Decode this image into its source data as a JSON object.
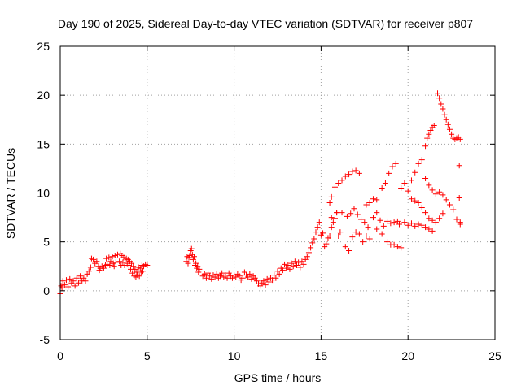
{
  "chart_data": {
    "type": "scatter",
    "title": "Day 190 of 2025, Sidereal Day-to-day VTEC variation (SDTVAR) for receiver p807",
    "xlabel": "GPS time / hours",
    "ylabel": "SDTVAR / TECUs",
    "xlim": [
      0,
      25
    ],
    "ylim": [
      -5,
      25
    ],
    "xticks": [
      0,
      5,
      10,
      15,
      20,
      25
    ],
    "yticks": [
      -5,
      0,
      5,
      10,
      15,
      20,
      25
    ],
    "xtick_labels": [
      "0",
      "5",
      "10",
      "15",
      "20",
      "25"
    ],
    "ytick_labels": [
      "-5",
      "0",
      "5",
      "10",
      "15",
      "20",
      "25"
    ],
    "grid": true,
    "marker": "+",
    "marker_color": "#ff0000",
    "series": [
      {
        "name": "SDTVAR",
        "points": [
          [
            0.0,
            -0.3
          ],
          [
            0.05,
            0.5
          ],
          [
            0.1,
            0.3
          ],
          [
            0.15,
            1.0
          ],
          [
            0.25,
            0.6
          ],
          [
            0.35,
            1.1
          ],
          [
            0.45,
            0.4
          ],
          [
            0.55,
            1.2
          ],
          [
            0.65,
            0.8
          ],
          [
            0.75,
            1.0
          ],
          [
            0.85,
            0.5
          ],
          [
            0.95,
            1.3
          ],
          [
            1.05,
            0.8
          ],
          [
            1.15,
            1.5
          ],
          [
            1.25,
            1.0
          ],
          [
            1.35,
            1.3
          ],
          [
            1.45,
            1.0
          ],
          [
            1.55,
            1.7
          ],
          [
            1.65,
            2.0
          ],
          [
            1.75,
            2.4
          ],
          [
            1.8,
            3.3
          ],
          [
            1.9,
            3.2
          ],
          [
            2.0,
            2.8
          ],
          [
            2.1,
            3.0
          ],
          [
            2.2,
            2.5
          ],
          [
            2.25,
            2.1
          ],
          [
            2.3,
            2.3
          ],
          [
            2.4,
            2.5
          ],
          [
            2.5,
            2.3
          ],
          [
            2.6,
            2.6
          ],
          [
            2.65,
            3.3
          ],
          [
            2.7,
            2.7
          ],
          [
            2.8,
            3.4
          ],
          [
            2.85,
            2.6
          ],
          [
            2.9,
            3.0
          ],
          [
            3.0,
            3.5
          ],
          [
            3.05,
            2.8
          ],
          [
            3.1,
            2.5
          ],
          [
            3.15,
            3.6
          ],
          [
            3.2,
            2.9
          ],
          [
            3.3,
            3.7
          ],
          [
            3.4,
            3.0
          ],
          [
            3.45,
            3.8
          ],
          [
            3.5,
            2.6
          ],
          [
            3.55,
            3.6
          ],
          [
            3.6,
            2.9
          ],
          [
            3.65,
            3.4
          ],
          [
            3.7,
            2.6
          ],
          [
            3.8,
            3.3
          ],
          [
            3.85,
            2.8
          ],
          [
            3.9,
            3.2
          ],
          [
            3.95,
            2.6
          ],
          [
            4.0,
            3.0
          ],
          [
            4.05,
            2.2
          ],
          [
            4.1,
            2.8
          ],
          [
            4.15,
            1.8
          ],
          [
            4.2,
            2.5
          ],
          [
            4.25,
            1.5
          ],
          [
            4.3,
            2.2
          ],
          [
            4.35,
            1.4
          ],
          [
            4.4,
            1.9
          ],
          [
            4.45,
            1.6
          ],
          [
            4.5,
            2.4
          ],
          [
            4.55,
            1.5
          ],
          [
            4.6,
            2.3
          ],
          [
            4.65,
            1.9
          ],
          [
            4.7,
            2.6
          ],
          [
            4.75,
            2.0
          ],
          [
            4.8,
            2.5
          ],
          [
            4.9,
            2.7
          ],
          [
            5.0,
            2.6
          ],
          [
            7.25,
            3.0
          ],
          [
            7.3,
            3.5
          ],
          [
            7.35,
            2.8
          ],
          [
            7.4,
            3.4
          ],
          [
            7.45,
            3.6
          ],
          [
            7.5,
            4.1
          ],
          [
            7.55,
            4.3
          ],
          [
            7.6,
            3.7
          ],
          [
            7.65,
            3.2
          ],
          [
            7.7,
            3.5
          ],
          [
            7.75,
            2.6
          ],
          [
            7.8,
            2.8
          ],
          [
            7.85,
            2.3
          ],
          [
            7.9,
            2.5
          ],
          [
            7.95,
            1.9
          ],
          [
            8.0,
            2.2
          ],
          [
            8.2,
            1.5
          ],
          [
            8.3,
            1.7
          ],
          [
            8.4,
            1.3
          ],
          [
            8.5,
            1.8
          ],
          [
            8.6,
            1.5
          ],
          [
            8.7,
            1.2
          ],
          [
            8.8,
            1.6
          ],
          [
            8.9,
            1.4
          ],
          [
            9.0,
            1.7
          ],
          [
            9.1,
            1.3
          ],
          [
            9.2,
            1.5
          ],
          [
            9.3,
            1.8
          ],
          [
            9.4,
            1.4
          ],
          [
            9.5,
            1.6
          ],
          [
            9.6,
            1.3
          ],
          [
            9.7,
            1.8
          ],
          [
            9.8,
            1.5
          ],
          [
            9.9,
            1.3
          ],
          [
            10.0,
            1.6
          ],
          [
            10.1,
            1.4
          ],
          [
            10.2,
            1.7
          ],
          [
            10.3,
            1.5
          ],
          [
            10.4,
            1.1
          ],
          [
            10.5,
            1.3
          ],
          [
            10.6,
            1.9
          ],
          [
            10.7,
            1.6
          ],
          [
            10.8,
            1.4
          ],
          [
            10.9,
            1.7
          ],
          [
            11.0,
            1.2
          ],
          [
            11.1,
            1.5
          ],
          [
            11.2,
            1.3
          ],
          [
            11.3,
            1.0
          ],
          [
            11.4,
            0.7
          ],
          [
            11.5,
            0.5
          ],
          [
            11.6,
            0.8
          ],
          [
            11.7,
            1.0
          ],
          [
            11.8,
            0.6
          ],
          [
            11.9,
            1.2
          ],
          [
            12.0,
            0.9
          ],
          [
            12.1,
            1.3
          ],
          [
            12.2,
            1.1
          ],
          [
            12.3,
            1.6
          ],
          [
            12.4,
            1.3
          ],
          [
            12.5,
            2.0
          ],
          [
            12.6,
            1.7
          ],
          [
            12.7,
            2.3
          ],
          [
            12.8,
            2.1
          ],
          [
            12.9,
            2.7
          ],
          [
            13.0,
            2.3
          ],
          [
            13.1,
            2.6
          ],
          [
            13.2,
            2.2
          ],
          [
            13.3,
            2.8
          ],
          [
            13.4,
            2.5
          ],
          [
            13.5,
            3.0
          ],
          [
            13.6,
            2.6
          ],
          [
            13.7,
            2.9
          ],
          [
            13.8,
            2.4
          ],
          [
            13.9,
            3.0
          ],
          [
            14.0,
            2.7
          ],
          [
            14.1,
            3.2
          ],
          [
            14.2,
            3.5
          ],
          [
            14.3,
            3.9
          ],
          [
            14.4,
            4.4
          ],
          [
            14.5,
            4.9
          ],
          [
            14.6,
            5.3
          ],
          [
            14.7,
            6.0
          ],
          [
            14.8,
            6.5
          ],
          [
            14.9,
            7.0
          ],
          [
            15.0,
            5.7
          ],
          [
            15.1,
            5.9
          ],
          [
            15.2,
            4.5
          ],
          [
            15.3,
            4.8
          ],
          [
            15.4,
            5.4
          ],
          [
            15.5,
            5.6
          ],
          [
            15.6,
            6.5
          ],
          [
            15.7,
            7.0
          ],
          [
            15.8,
            7.4
          ],
          [
            15.9,
            8.0
          ],
          [
            16.0,
            5.6
          ],
          [
            16.1,
            6.0
          ],
          [
            15.5,
            9.0
          ],
          [
            15.6,
            9.6
          ],
          [
            15.8,
            10.6
          ],
          [
            16.0,
            11.0
          ],
          [
            16.2,
            11.3
          ],
          [
            16.4,
            11.7
          ],
          [
            16.6,
            11.9
          ],
          [
            16.8,
            12.2
          ],
          [
            17.0,
            12.3
          ],
          [
            17.2,
            12.0
          ],
          [
            15.6,
            7.5
          ],
          [
            15.9,
            8.0
          ],
          [
            16.2,
            8.0
          ],
          [
            16.5,
            7.6
          ],
          [
            16.7,
            7.9
          ],
          [
            16.9,
            8.4
          ],
          [
            17.1,
            7.8
          ],
          [
            17.3,
            7.3
          ],
          [
            17.5,
            7.0
          ],
          [
            17.7,
            6.5
          ],
          [
            16.4,
            4.5
          ],
          [
            16.6,
            4.1
          ],
          [
            16.8,
            5.5
          ],
          [
            17.0,
            6.0
          ],
          [
            17.2,
            5.8
          ],
          [
            17.4,
            5.0
          ],
          [
            17.6,
            5.6
          ],
          [
            17.8,
            5.3
          ],
          [
            18.0,
            7.5
          ],
          [
            18.2,
            8.0
          ],
          [
            17.6,
            8.8
          ],
          [
            17.8,
            9.0
          ],
          [
            18.0,
            9.4
          ],
          [
            18.2,
            9.3
          ],
          [
            18.4,
            7.2
          ],
          [
            18.6,
            6.6
          ],
          [
            18.8,
            7.1
          ],
          [
            19.0,
            6.9
          ],
          [
            19.2,
            7.0
          ],
          [
            19.4,
            7.1
          ],
          [
            18.2,
            6.3
          ],
          [
            18.5,
            5.8
          ],
          [
            18.8,
            5.0
          ],
          [
            19.0,
            4.7
          ],
          [
            19.2,
            4.7
          ],
          [
            19.4,
            4.5
          ],
          [
            19.6,
            4.4
          ],
          [
            18.5,
            10.5
          ],
          [
            18.7,
            11.0
          ],
          [
            18.9,
            12.0
          ],
          [
            19.1,
            12.7
          ],
          [
            19.3,
            13.0
          ],
          [
            19.5,
            6.8
          ],
          [
            19.8,
            7.0
          ],
          [
            20.0,
            6.7
          ],
          [
            20.2,
            6.9
          ],
          [
            20.4,
            6.6
          ],
          [
            20.6,
            6.8
          ],
          [
            20.8,
            6.7
          ],
          [
            21.0,
            6.5
          ],
          [
            21.2,
            6.3
          ],
          [
            21.4,
            6.1
          ],
          [
            19.6,
            10.5
          ],
          [
            19.8,
            11.0
          ],
          [
            20.0,
            10.2
          ],
          [
            20.2,
            11.3
          ],
          [
            20.4,
            12.1
          ],
          [
            20.6,
            13.0
          ],
          [
            20.8,
            13.4
          ],
          [
            21.0,
            11.5
          ],
          [
            21.2,
            10.8
          ],
          [
            21.4,
            10.3
          ],
          [
            20.2,
            9.4
          ],
          [
            20.4,
            9.2
          ],
          [
            20.6,
            9.0
          ],
          [
            20.8,
            8.5
          ],
          [
            21.0,
            8.0
          ],
          [
            21.2,
            7.4
          ],
          [
            21.4,
            7.2
          ],
          [
            21.6,
            7.0
          ],
          [
            21.8,
            7.4
          ],
          [
            22.0,
            7.9
          ],
          [
            21.6,
            9.9
          ],
          [
            21.8,
            10.1
          ],
          [
            22.0,
            9.8
          ],
          [
            22.2,
            9.3
          ],
          [
            22.4,
            8.8
          ],
          [
            22.6,
            8.3
          ],
          [
            22.8,
            7.3
          ],
          [
            23.0,
            7.0
          ],
          [
            23.0,
            6.8
          ],
          [
            22.95,
            9.5
          ],
          [
            21.0,
            14.8
          ],
          [
            21.1,
            15.6
          ],
          [
            21.2,
            16.0
          ],
          [
            21.3,
            16.4
          ],
          [
            21.4,
            16.7
          ],
          [
            21.5,
            16.9
          ],
          [
            21.7,
            20.2
          ],
          [
            21.8,
            19.7
          ],
          [
            21.9,
            19.1
          ],
          [
            22.0,
            18.6
          ],
          [
            22.1,
            18.0
          ],
          [
            22.2,
            17.5
          ],
          [
            22.3,
            17.0
          ],
          [
            22.4,
            16.5
          ],
          [
            22.5,
            16.0
          ],
          [
            22.6,
            15.6
          ],
          [
            22.7,
            15.5
          ],
          [
            22.8,
            15.6
          ],
          [
            22.9,
            15.7
          ],
          [
            22.95,
            12.8
          ],
          [
            23.0,
            15.5
          ]
        ]
      }
    ]
  }
}
